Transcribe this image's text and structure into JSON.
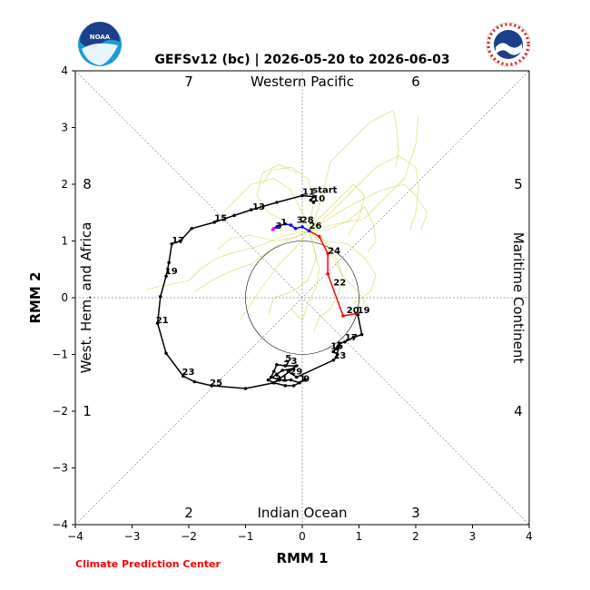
{
  "chart_data": {
    "type": "line",
    "title": "GEFSv12 (bc) | 2026-05-20 to 2026-06-03",
    "xlabel": "RMM 1",
    "ylabel": "RMM 2",
    "xlim": [
      -4,
      4
    ],
    "ylim": [
      -4,
      4
    ],
    "xticks": [
      "−4",
      "−3",
      "−2",
      "−1",
      "0",
      "1",
      "2",
      "3",
      "4"
    ],
    "yticks": [
      "−4",
      "−3",
      "−2",
      "−1",
      "0",
      "1",
      "2",
      "3",
      "4"
    ],
    "regions": {
      "top": "Western Pacific",
      "bottom": "Indian Ocean",
      "left": "West. Hem. and Africa",
      "right": "Maritime Continent"
    },
    "phase_numbers": [
      "1",
      "2",
      "3",
      "4",
      "5",
      "6",
      "7",
      "8"
    ],
    "colors": {
      "observed_early": "#000000",
      "observed_late": "#ff0000",
      "forecast_mean": "#0000ff",
      "forecast_end": "#ff00ff",
      "ensemble": "#cccc33",
      "credit": "#ff0000"
    },
    "series": [
      {
        "kind": "observed-early",
        "points": [
          [
            0.62,
            -1.0
          ],
          [
            0.55,
            -0.95
          ],
          [
            0.6,
            -0.9
          ],
          [
            0.65,
            -0.85
          ],
          [
            0.6,
            -1.05
          ],
          [
            0.55,
            -1.1
          ],
          [
            -0.1,
            -1.4
          ],
          [
            -0.25,
            -1.3
          ],
          [
            -0.1,
            -1.2
          ],
          [
            -0.3,
            -1.2
          ],
          [
            -0.45,
            -1.18
          ],
          [
            -0.5,
            -1.3
          ],
          [
            -0.55,
            -1.4
          ],
          [
            -0.4,
            -1.45
          ],
          [
            -0.2,
            -1.45
          ],
          [
            -0.05,
            -1.5
          ],
          [
            0.05,
            -1.45
          ],
          [
            -0.15,
            -1.55
          ],
          [
            -0.3,
            -1.55
          ],
          [
            -0.5,
            -1.5
          ],
          [
            -0.6,
            -1.45
          ],
          [
            -0.45,
            -1.35
          ],
          [
            -0.35,
            -1.28
          ],
          [
            -0.15,
            -1.25
          ],
          [
            -0.5,
            -1.5
          ],
          [
            -1.0,
            -1.6
          ],
          [
            -1.6,
            -1.55
          ],
          [
            -1.9,
            -1.48
          ],
          [
            -2.1,
            -1.38
          ],
          [
            -2.4,
            -0.98
          ],
          [
            -2.55,
            -0.45
          ],
          [
            -2.5,
            0.02
          ],
          [
            -2.4,
            0.38
          ],
          [
            -2.35,
            0.62
          ],
          [
            -2.3,
            0.95
          ],
          [
            -2.15,
            1.0
          ],
          [
            -1.95,
            1.22
          ],
          [
            -1.55,
            1.33
          ],
          [
            -1.2,
            1.45
          ],
          [
            -0.9,
            1.55
          ],
          [
            -0.45,
            1.68
          ],
          [
            0.0,
            1.8
          ],
          [
            0.2,
            1.78
          ],
          [
            0.15,
            1.72
          ],
          [
            0.2,
            1.68
          ]
        ]
      },
      {
        "kind": "observed-phase45",
        "points": [
          [
            0.95,
            -0.28
          ],
          [
            0.98,
            -0.3
          ],
          [
            1.05,
            -0.65
          ],
          [
            0.9,
            -0.7
          ],
          [
            0.75,
            -0.78
          ],
          [
            0.65,
            -0.8
          ],
          [
            0.55,
            -0.95
          ]
        ]
      },
      {
        "kind": "observed-late",
        "points": [
          [
            0.95,
            -0.28
          ],
          [
            0.72,
            -0.32
          ],
          [
            0.45,
            0.42
          ],
          [
            0.45,
            0.78
          ],
          [
            0.3,
            1.08
          ],
          [
            0.12,
            1.18
          ]
        ]
      },
      {
        "kind": "forecast-mean",
        "points": [
          [
            0.12,
            1.18
          ],
          [
            0.0,
            1.25
          ],
          [
            -0.12,
            1.22
          ],
          [
            -0.2,
            1.28
          ],
          [
            -0.3,
            1.3
          ],
          [
            -0.45,
            1.25
          ],
          [
            -0.5,
            1.22
          ]
        ]
      },
      {
        "kind": "forecast-end",
        "points": [
          [
            -0.5,
            1.22
          ],
          [
            -0.52,
            1.2
          ]
        ]
      }
    ],
    "point_labels": [
      {
        "text": "start",
        "x": 0.18,
        "y": 1.85
      },
      {
        "text": "11",
        "x": 0.0,
        "y": 1.82
      },
      {
        "text": "10",
        "x": 0.18,
        "y": 1.7
      },
      {
        "text": "13",
        "x": -0.88,
        "y": 1.55
      },
      {
        "text": "15",
        "x": -1.55,
        "y": 1.35
      },
      {
        "text": "17",
        "x": -2.3,
        "y": 0.96
      },
      {
        "text": "19",
        "x": -2.42,
        "y": 0.42
      },
      {
        "text": "21",
        "x": -2.58,
        "y": -0.45
      },
      {
        "text": "23",
        "x": -2.12,
        "y": -1.36
      },
      {
        "text": "25",
        "x": -1.63,
        "y": -1.55
      },
      {
        "text": "1",
        "x": -0.38,
        "y": 1.28
      },
      {
        "text": "3",
        "x": -0.47,
        "y": 1.22
      },
      {
        "text": "3",
        "x": -0.1,
        "y": 1.32
      },
      {
        "text": "28",
        "x": -0.02,
        "y": 1.32
      },
      {
        "text": "26",
        "x": 0.12,
        "y": 1.22
      },
      {
        "text": "24",
        "x": 0.45,
        "y": 0.78
      },
      {
        "text": "22",
        "x": 0.55,
        "y": 0.22
      },
      {
        "text": "20",
        "x": 0.78,
        "y": -0.27
      },
      {
        "text": "19",
        "x": 0.97,
        "y": -0.27
      },
      {
        "text": "17",
        "x": 0.75,
        "y": -0.75
      },
      {
        "text": "15",
        "x": 0.5,
        "y": -0.9
      },
      {
        "text": "13",
        "x": 0.55,
        "y": -1.07
      },
      {
        "text": "5",
        "x": -0.3,
        "y": -1.12
      },
      {
        "text": "3",
        "x": -0.2,
        "y": -1.17
      },
      {
        "text": "7",
        "x": -0.33,
        "y": -1.22
      },
      {
        "text": "29",
        "x": -0.22,
        "y": -1.35
      },
      {
        "text": "31",
        "x": -0.48,
        "y": -1.48
      },
      {
        "text": "1",
        "x": -0.05,
        "y": -1.48
      },
      {
        "text": "9",
        "x": 0.02,
        "y": -1.48
      }
    ],
    "ensemble": [
      [
        [
          0.12,
          1.18
        ],
        [
          0.3,
          1.6
        ],
        [
          0.5,
          2.4
        ],
        [
          0.9,
          2.8
        ],
        [
          1.2,
          3.1
        ],
        [
          1.6,
          3.3
        ],
        [
          1.65,
          3.1
        ],
        [
          1.7,
          2.6
        ],
        [
          1.65,
          2.3
        ]
      ],
      [
        [
          0.12,
          1.18
        ],
        [
          0.5,
          1.5
        ],
        [
          0.9,
          1.9
        ],
        [
          1.3,
          2.3
        ],
        [
          1.7,
          2.5
        ],
        [
          2.0,
          2.3
        ],
        [
          2.05,
          1.9
        ],
        [
          2.0,
          1.5
        ],
        [
          1.9,
          1.2
        ]
      ],
      [
        [
          0.12,
          1.18
        ],
        [
          0.35,
          1.05
        ],
        [
          0.6,
          0.7
        ],
        [
          0.7,
          0.4
        ],
        [
          0.65,
          0.1
        ],
        [
          0.5,
          -0.2
        ],
        [
          0.3,
          -0.35
        ],
        [
          0.2,
          -0.6
        ]
      ],
      [
        [
          0.12,
          1.18
        ],
        [
          0.45,
          1.2
        ],
        [
          0.8,
          1.35
        ],
        [
          1.1,
          1.6
        ],
        [
          1.25,
          1.3
        ],
        [
          1.3,
          1.0
        ],
        [
          1.15,
          0.8
        ]
      ],
      [
        [
          0.12,
          1.18
        ],
        [
          -0.2,
          1.3
        ],
        [
          -0.6,
          1.5
        ],
        [
          -0.8,
          1.8
        ],
        [
          -0.7,
          2.2
        ],
        [
          -0.4,
          2.35
        ],
        [
          -0.1,
          2.2
        ]
      ],
      [
        [
          0.12,
          1.18
        ],
        [
          -0.3,
          1.1
        ],
        [
          -0.8,
          0.9
        ],
        [
          -1.2,
          0.8
        ],
        [
          -1.5,
          0.7
        ],
        [
          -1.8,
          0.5
        ],
        [
          -2.0,
          0.3
        ],
        [
          -2.75,
          0.15
        ]
      ],
      [
        [
          0.12,
          1.18
        ],
        [
          -0.1,
          0.9
        ],
        [
          -0.4,
          0.6
        ],
        [
          -0.7,
          0.2
        ],
        [
          -0.9,
          -0.1
        ],
        [
          -1.1,
          -0.4
        ]
      ],
      [
        [
          0.12,
          1.18
        ],
        [
          0.2,
          0.9
        ],
        [
          0.3,
          0.5
        ],
        [
          0.25,
          0.2
        ],
        [
          0.1,
          -0.1
        ],
        [
          0.0,
          -0.4
        ],
        [
          -0.2,
          -0.2
        ]
      ],
      [
        [
          0.12,
          1.18
        ],
        [
          0.3,
          1.4
        ],
        [
          0.6,
          1.7
        ],
        [
          0.9,
          2.0
        ],
        [
          1.1,
          1.8
        ],
        [
          1.0,
          1.4
        ],
        [
          0.8,
          1.1
        ]
      ],
      [
        [
          0.12,
          1.18
        ],
        [
          0.0,
          1.5
        ],
        [
          -0.2,
          1.9
        ],
        [
          -0.5,
          2.1
        ],
        [
          -0.9,
          2.0
        ],
        [
          -1.2,
          1.7
        ],
        [
          -1.4,
          1.5
        ]
      ],
      [
        [
          0.12,
          1.18
        ],
        [
          0.4,
          1.0
        ],
        [
          0.8,
          0.95
        ],
        [
          1.1,
          0.7
        ],
        [
          1.3,
          0.4
        ],
        [
          1.2,
          0.1
        ],
        [
          0.9,
          -0.1
        ]
      ],
      [
        [
          0.12,
          1.18
        ],
        [
          -0.15,
          1.05
        ],
        [
          -0.5,
          1.0
        ],
        [
          -0.9,
          1.1
        ],
        [
          -1.25,
          1.05
        ],
        [
          -1.5,
          0.85
        ]
      ],
      [
        [
          0.12,
          1.18
        ],
        [
          0.6,
          1.3
        ],
        [
          1.1,
          1.4
        ],
        [
          1.5,
          1.8
        ],
        [
          1.8,
          2.1
        ],
        [
          2.0,
          2.7
        ],
        [
          2.05,
          3.2
        ]
      ],
      [
        [
          0.12,
          1.18
        ],
        [
          0.2,
          1.7
        ],
        [
          0.1,
          2.1
        ],
        [
          -0.2,
          2.3
        ],
        [
          -0.55,
          2.25
        ],
        [
          -0.7,
          2.0
        ]
      ],
      [
        [
          0.12,
          1.18
        ],
        [
          0.5,
          0.8
        ],
        [
          0.7,
          0.4
        ],
        [
          0.9,
          0.2
        ],
        [
          1.1,
          -0.05
        ],
        [
          1.0,
          -0.3
        ]
      ],
      [
        [
          0.12,
          1.18
        ],
        [
          -0.4,
          0.95
        ],
        [
          -0.9,
          0.6
        ],
        [
          -1.3,
          0.45
        ],
        [
          -1.6,
          0.3
        ],
        [
          -1.9,
          0.1
        ]
      ],
      [
        [
          0.12,
          1.18
        ],
        [
          0.8,
          1.6
        ],
        [
          1.4,
          1.9
        ],
        [
          1.8,
          2.0
        ],
        [
          2.0,
          1.8
        ],
        [
          2.2,
          1.5
        ],
        [
          2.1,
          1.2
        ]
      ],
      [
        [
          0.12,
          1.18
        ],
        [
          0.25,
          0.7
        ],
        [
          0.1,
          0.3
        ],
        [
          -0.2,
          0.1
        ],
        [
          -0.5,
          0.0
        ],
        [
          -0.6,
          -0.3
        ]
      ]
    ]
  },
  "credit": "Climate Prediction Center",
  "logos": {
    "left": "noaa-logo",
    "right": "nws-logo",
    "left_text": "NOAA",
    "right_text": "NATIONAL WEATHER SERVICE"
  }
}
